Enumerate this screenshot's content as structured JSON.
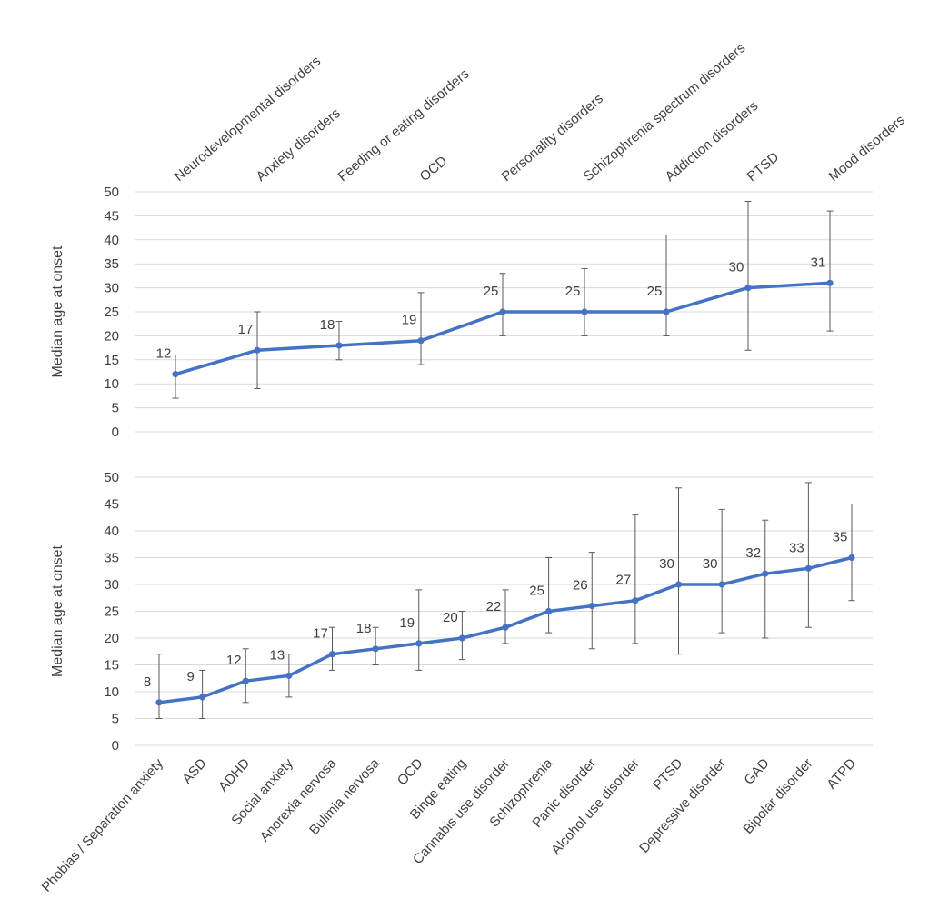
{
  "chart_data": [
    {
      "type": "line",
      "ylabel": "Median age at onset",
      "ylim": [
        0,
        50
      ],
      "yticks": [
        0,
        5,
        10,
        15,
        20,
        25,
        30,
        35,
        40,
        45,
        50
      ],
      "category_axis_position": "top",
      "categories": [
        "Neurodevelopmental disorders",
        "Anxiety disorders",
        "Feeding or eating disorders",
        "OCD",
        "Personality disorders",
        "Schizophrenia spectrum disorders",
        "Addiction disorders",
        "PTSD",
        "Mood disorders"
      ],
      "values": [
        12,
        17,
        18,
        19,
        25,
        25,
        25,
        30,
        31
      ],
      "error_low": [
        7,
        9,
        15,
        14,
        20,
        20,
        20,
        17,
        21
      ],
      "error_high": [
        16,
        25,
        23,
        29,
        33,
        34,
        41,
        48,
        46
      ],
      "grid": true,
      "color": "#4472c4"
    },
    {
      "type": "line",
      "ylabel": "Median age at onset",
      "ylim": [
        0,
        50
      ],
      "yticks": [
        0,
        5,
        10,
        15,
        20,
        25,
        30,
        35,
        40,
        45,
        50
      ],
      "category_axis_position": "bottom",
      "categories": [
        "Phobias / Separation anxiety",
        "ASD",
        "ADHD",
        "Social anxiety",
        "Anorexia nervosa",
        "Bulimia nervosa",
        "OCD",
        "Binge eating",
        "Cannabis use disorder",
        "Schizophrenia",
        "Panic disorder",
        "Alcohol use disorder",
        "PTSD",
        "Depressive disorder",
        "GAD",
        "Bipolar disorder",
        "ATPD"
      ],
      "values": [
        8,
        9,
        12,
        13,
        17,
        18,
        19,
        20,
        22,
        25,
        26,
        27,
        30,
        30,
        32,
        33,
        35
      ],
      "error_low": [
        5,
        5,
        8,
        9,
        14,
        15,
        14,
        16,
        19,
        21,
        18,
        19,
        17,
        21,
        20,
        22,
        27
      ],
      "error_high": [
        17,
        14,
        18,
        17,
        22,
        22,
        29,
        25,
        29,
        35,
        36,
        43,
        48,
        44,
        42,
        49,
        45
      ],
      "grid": true,
      "color": "#4472c4"
    }
  ]
}
